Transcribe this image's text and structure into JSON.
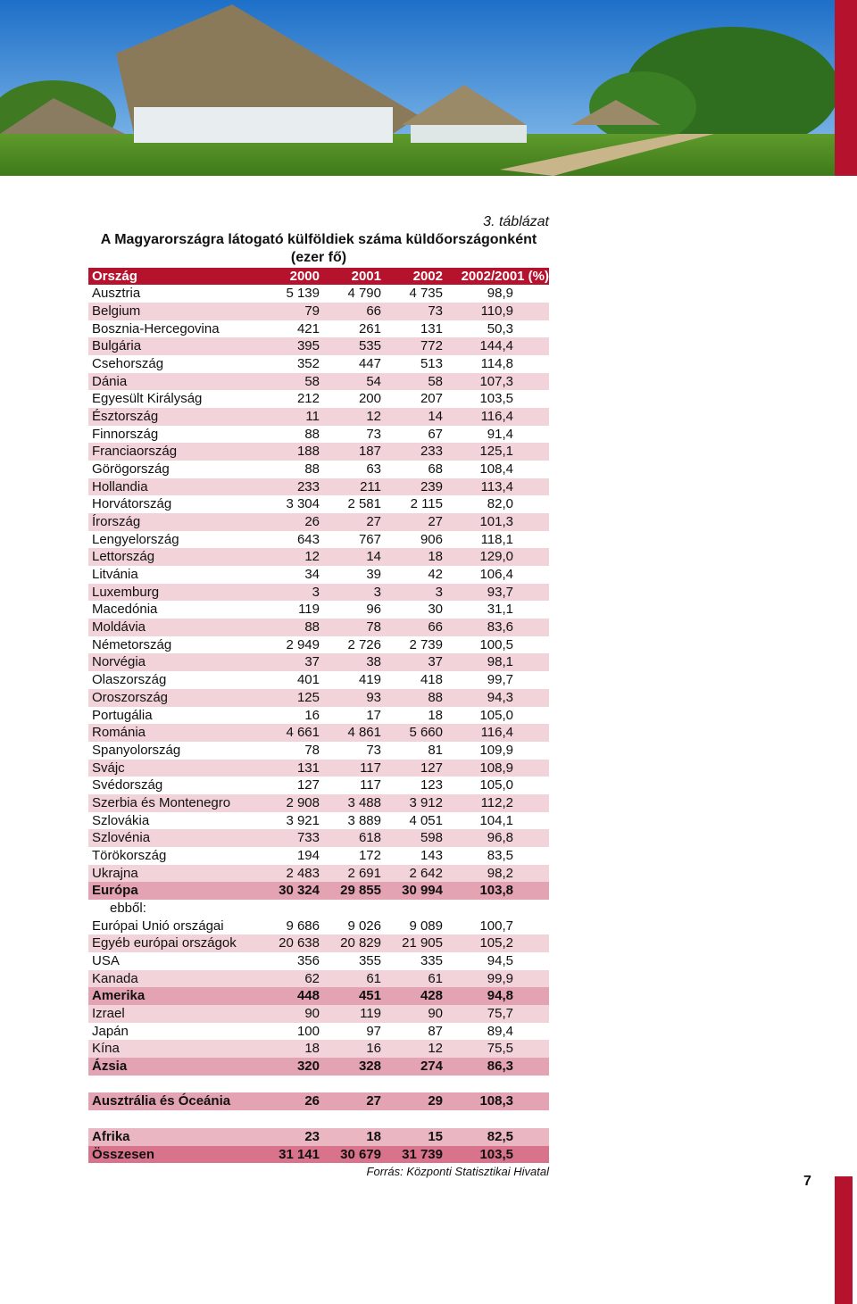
{
  "page_number": "7",
  "table": {
    "label": "3. táblázat",
    "title": "A Magyarországra látogató külföldiek száma küldőországonként",
    "subtitle": "(ezer fő)",
    "header": [
      "Ország",
      "2000",
      "2001",
      "2002",
      "2002/2001 (%)"
    ],
    "rows": [
      [
        "Ausztria",
        "5 139",
        "4 790",
        "4 735",
        "98,9"
      ],
      [
        "Belgium",
        "79",
        "66",
        "73",
        "110,9"
      ],
      [
        "Bosznia-Hercegovina",
        "421",
        "261",
        "131",
        "50,3"
      ],
      [
        "Bulgária",
        "395",
        "535",
        "772",
        "144,4"
      ],
      [
        "Csehország",
        "352",
        "447",
        "513",
        "114,8"
      ],
      [
        "Dánia",
        "58",
        "54",
        "58",
        "107,3"
      ],
      [
        "Egyesült Királyság",
        "212",
        "200",
        "207",
        "103,5"
      ],
      [
        "Észtország",
        "11",
        "12",
        "14",
        "116,4"
      ],
      [
        "Finnország",
        "88",
        "73",
        "67",
        "91,4"
      ],
      [
        "Franciaország",
        "188",
        "187",
        "233",
        "125,1"
      ],
      [
        "Görögország",
        "88",
        "63",
        "68",
        "108,4"
      ],
      [
        "Hollandia",
        "233",
        "211",
        "239",
        "113,4"
      ],
      [
        "Horvátország",
        "3 304",
        "2 581",
        "2 115",
        "82,0"
      ],
      [
        "Írország",
        "26",
        "27",
        "27",
        "101,3"
      ],
      [
        "Lengyelország",
        "643",
        "767",
        "906",
        "118,1"
      ],
      [
        "Lettország",
        "12",
        "14",
        "18",
        "129,0"
      ],
      [
        "Litvánia",
        "34",
        "39",
        "42",
        "106,4"
      ],
      [
        "Luxemburg",
        "3",
        "3",
        "3",
        "93,7"
      ],
      [
        "Macedónia",
        "119",
        "96",
        "30",
        "31,1"
      ],
      [
        "Moldávia",
        "88",
        "78",
        "66",
        "83,6"
      ],
      [
        "Németország",
        "2 949",
        "2 726",
        "2 739",
        "100,5"
      ],
      [
        "Norvégia",
        "37",
        "38",
        "37",
        "98,1"
      ],
      [
        "Olaszország",
        "401",
        "419",
        "418",
        "99,7"
      ],
      [
        "Oroszország",
        "125",
        "93",
        "88",
        "94,3"
      ],
      [
        "Portugália",
        "16",
        "17",
        "18",
        "105,0"
      ],
      [
        "Románia",
        "4 661",
        "4 861",
        "5 660",
        "116,4"
      ],
      [
        "Spanyolország",
        "78",
        "73",
        "81",
        "109,9"
      ],
      [
        "Svájc",
        "131",
        "117",
        "127",
        "108,9"
      ],
      [
        "Svédország",
        "127",
        "117",
        "123",
        "105,0"
      ],
      [
        "Szerbia és Montenegro",
        "2 908",
        "3 488",
        "3 912",
        "112,2"
      ],
      [
        "Szlovákia",
        "3 921",
        "3 889",
        "4 051",
        "104,1"
      ],
      [
        "Szlovénia",
        "733",
        "618",
        "598",
        "96,8"
      ],
      [
        "Törökország",
        "194",
        "172",
        "143",
        "83,5"
      ],
      [
        "Ukrajna",
        "2 483",
        "2 691",
        "2 642",
        "98,2"
      ],
      [
        "Európa",
        "30 324",
        "29 855",
        "30 994",
        "103,8"
      ],
      [
        "ebből:"
      ],
      [
        "Európai Unió országai",
        "9 686",
        "9 026",
        "9 089",
        "100,7"
      ],
      [
        "Egyéb európai országok",
        "20 638",
        "20 829",
        "21 905",
        "105,2"
      ],
      [
        "USA",
        "356",
        "355",
        "335",
        "94,5"
      ],
      [
        "Kanada",
        "62",
        "61",
        "61",
        "99,9"
      ],
      [
        "Amerika",
        "448",
        "451",
        "428",
        "94,8"
      ],
      [
        "Izrael",
        "90",
        "119",
        "90",
        "75,7"
      ],
      [
        "Japán",
        "100",
        "97",
        "87",
        "89,4"
      ],
      [
        "Kína",
        "18",
        "16",
        "12",
        "75,5"
      ],
      [
        "Ázsia",
        "320",
        "328",
        "274",
        "86,3"
      ],
      [
        "Ausztrália és Óceánia",
        "26",
        "27",
        "29",
        "108,3"
      ],
      [
        "Afrika",
        "23",
        "18",
        "15",
        "82,5"
      ],
      [
        "Összesen",
        "31 141",
        "30 679",
        "31 739",
        "103,5"
      ]
    ],
    "source": "Forrás: Központi Statisztikai Hivatal"
  }
}
